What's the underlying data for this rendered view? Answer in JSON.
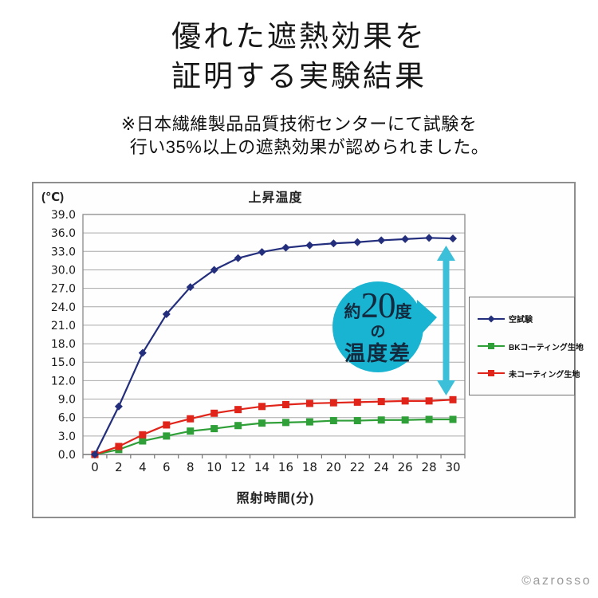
{
  "page": {
    "title_lines": [
      "優れた遮熱効果を",
      "証明する実験結果"
    ],
    "note_lines": [
      "※日本繊維製品品質技術センターにて試験を",
      "行い35%以上の遮熱効果が認められました。"
    ],
    "credit": "©azrosso"
  },
  "chart_data": {
    "type": "line",
    "title": "上昇温度",
    "y_unit_label": "(℃)",
    "xlabel": "照射時間(分)",
    "ylabel": "",
    "ylim": [
      0,
      39
    ],
    "ytick_step": 3,
    "grid": "horizontal",
    "legend_position": "right",
    "categories": [
      0,
      2,
      4,
      6,
      8,
      10,
      12,
      14,
      16,
      18,
      20,
      22,
      24,
      26,
      28,
      30
    ],
    "series": [
      {
        "name": "空試験",
        "color": "#232e7d",
        "marker": "diamond",
        "values": [
          0.0,
          7.8,
          16.5,
          22.8,
          27.2,
          30.0,
          31.9,
          32.9,
          33.6,
          34.0,
          34.3,
          34.5,
          34.8,
          35.0,
          35.2,
          35.1
        ]
      },
      {
        "name": "BKコーティング生地",
        "color": "#2f9f38",
        "marker": "square",
        "values": [
          0.0,
          0.8,
          2.2,
          3.0,
          3.8,
          4.2,
          4.7,
          5.1,
          5.2,
          5.3,
          5.5,
          5.5,
          5.6,
          5.6,
          5.7,
          5.7
        ]
      },
      {
        "name": "未コーティング生地",
        "color": "#e1241a",
        "marker": "square",
        "values": [
          0.0,
          1.3,
          3.2,
          4.8,
          5.8,
          6.7,
          7.3,
          7.8,
          8.1,
          8.3,
          8.4,
          8.5,
          8.6,
          8.7,
          8.7,
          8.9
        ]
      }
    ]
  },
  "annotation": {
    "prefix": "約",
    "big": "20",
    "suffix": "度",
    "middle": "の",
    "bottom": "温度差",
    "circle_color": "#18b4d2",
    "arrow_color": "#3cc0da",
    "text_color": "#13293d"
  },
  "chart_colors": {
    "gridline": "#a8a8a8",
    "plot_border": "#8a8a8a",
    "axis": "#5a5a5a",
    "tick_text": "#1b1b1b"
  }
}
